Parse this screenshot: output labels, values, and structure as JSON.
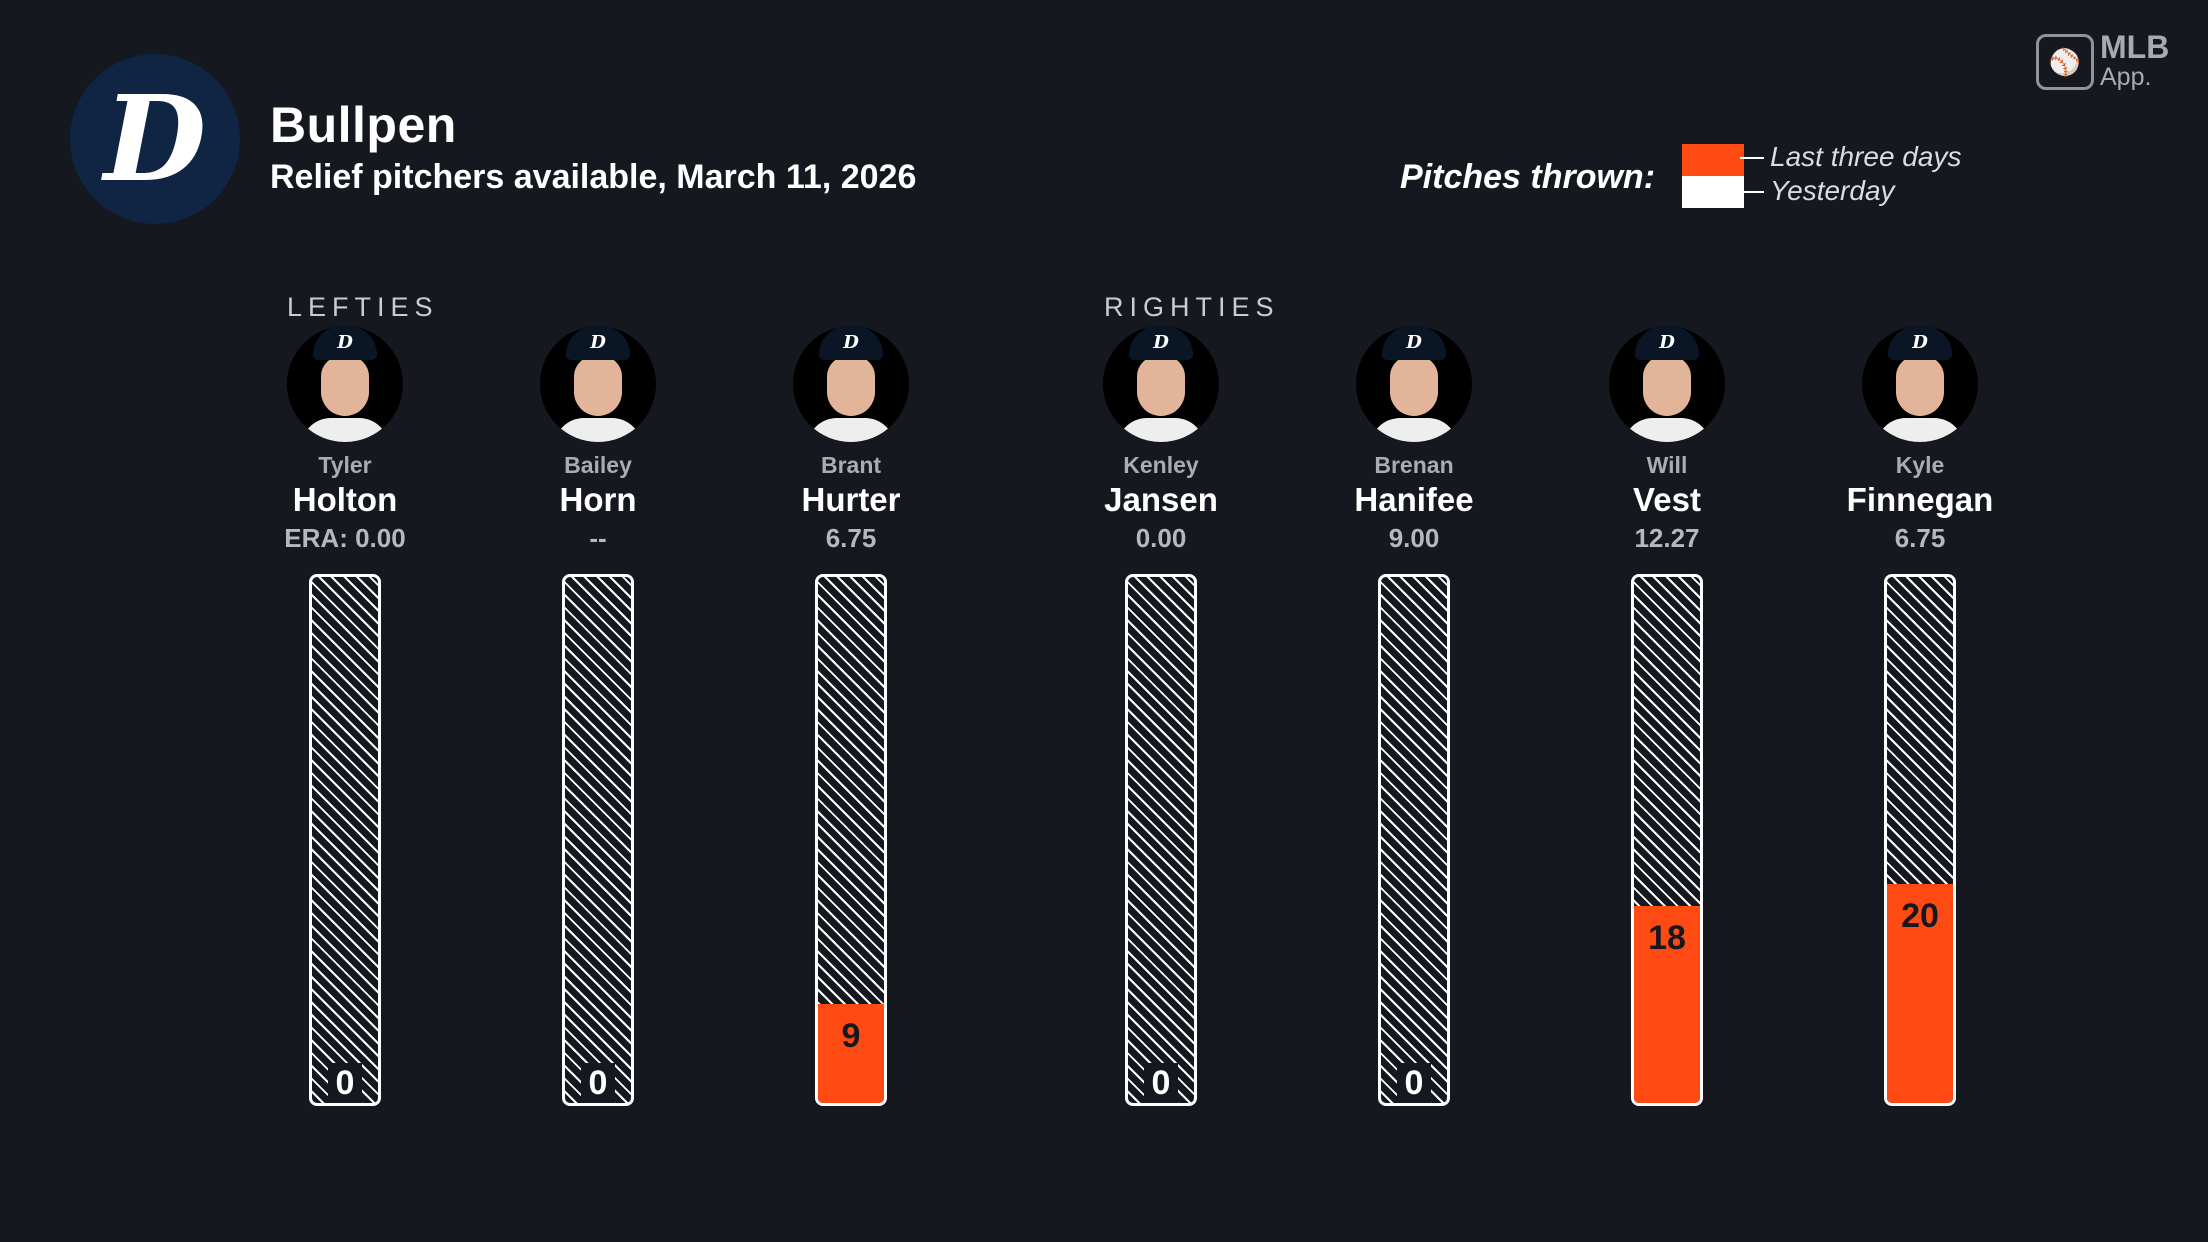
{
  "header": {
    "logo_letter": "D",
    "title": "Bullpen",
    "subtitle": "Relief pitchers available, March 11, 2026"
  },
  "branding": {
    "mlb": "MLB",
    "app": "App."
  },
  "legend": {
    "label": "Pitches thrown:",
    "items": [
      {
        "name": "Last three days",
        "color": "#ff4a14"
      },
      {
        "name": "Yesterday",
        "color": "#ffffff"
      }
    ]
  },
  "groups": {
    "lefties": "LEFTIES",
    "righties": "RIGHTIES"
  },
  "pitchers": [
    {
      "first": "Tyler",
      "last": "Holton",
      "era": "ERA: 0.00",
      "pitches": "0"
    },
    {
      "first": "Bailey",
      "last": "Horn",
      "era": "--",
      "pitches": "0"
    },
    {
      "first": "Brant",
      "last": "Hurter",
      "era": "6.75",
      "pitches": "9"
    },
    {
      "first": "Kenley",
      "last": "Jansen",
      "era": "0.00",
      "pitches": "0"
    },
    {
      "first": "Brenan",
      "last": "Hanifee",
      "era": "9.00",
      "pitches": "0"
    },
    {
      "first": "Will",
      "last": "Vest",
      "era": "12.27",
      "pitches": "18"
    },
    {
      "first": "Kyle",
      "last": "Finnegan",
      "era": "6.75",
      "pitches": "20"
    }
  ],
  "chart_data": {
    "type": "bar",
    "categories": [
      "Tyler Holton",
      "Bailey Horn",
      "Brant Hurter",
      "Kenley Jansen",
      "Brenan Hanifee",
      "Will Vest",
      "Kyle Finnegan"
    ],
    "series": [
      {
        "name": "Last three days",
        "values": [
          0,
          0,
          9,
          0,
          0,
          18,
          20
        ]
      },
      {
        "name": "Yesterday",
        "values": [
          0,
          0,
          0,
          0,
          0,
          0,
          0
        ]
      }
    ],
    "ylim": [
      0,
      48
    ],
    "colors": {
      "last_three_days": "#ff4a14",
      "yesterday": "#ffffff"
    }
  }
}
